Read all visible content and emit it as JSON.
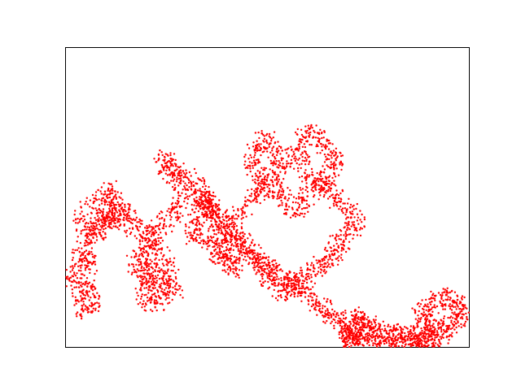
{
  "chart_data": {
    "type": "scatter",
    "title": "",
    "xlabel": "",
    "ylabel": "",
    "axes_visible_ticks": false,
    "grid": false,
    "legend": "none",
    "xlim": [
      0,
      1
    ],
    "ylim": [
      0,
      1
    ],
    "marker_color": "#ff0000",
    "series": [
      {
        "description_points_only": true,
        "x": [
          0.0,
          0.02,
          0.04,
          0.05,
          0.07,
          0.06,
          0.05,
          0.03,
          0.04,
          0.06,
          0.05,
          0.08,
          0.1,
          0.09,
          0.07,
          0.05,
          0.04,
          0.06,
          0.09,
          0.11,
          0.12,
          0.14,
          0.13,
          0.11,
          0.1,
          0.12,
          0.15,
          0.17,
          0.19,
          0.21,
          0.2,
          0.18,
          0.17,
          0.19,
          0.22,
          0.24,
          0.23,
          0.21,
          0.19,
          0.2,
          0.22,
          0.25,
          0.27,
          0.26,
          0.24,
          0.22,
          0.21,
          0.23,
          0.26,
          0.28,
          0.3,
          0.29,
          0.27,
          0.25,
          0.24,
          0.26,
          0.29,
          0.32,
          0.34,
          0.36,
          0.35,
          0.33,
          0.31,
          0.32,
          0.35,
          0.38,
          0.4,
          0.42,
          0.41,
          0.39,
          0.37,
          0.38,
          0.41,
          0.44,
          0.46,
          0.48,
          0.5,
          0.52,
          0.54,
          0.53,
          0.51,
          0.49,
          0.47,
          0.46,
          0.48,
          0.51,
          0.53,
          0.55,
          0.57,
          0.59,
          0.61,
          0.63,
          0.65,
          0.67,
          0.66,
          0.64,
          0.62,
          0.6,
          0.58,
          0.57,
          0.59,
          0.62,
          0.64,
          0.66,
          0.68,
          0.7,
          0.72,
          0.71,
          0.69,
          0.67,
          0.66,
          0.64,
          0.62,
          0.6,
          0.58,
          0.56,
          0.54,
          0.52,
          0.5,
          0.48,
          0.46,
          0.44,
          0.42,
          0.4,
          0.38,
          0.36,
          0.34,
          0.33,
          0.35,
          0.37,
          0.39,
          0.41,
          0.43,
          0.45,
          0.47,
          0.49,
          0.51,
          0.53,
          0.55,
          0.57,
          0.59,
          0.61,
          0.63,
          0.65,
          0.67,
          0.69,
          0.71,
          0.7,
          0.72,
          0.74,
          0.73,
          0.71,
          0.72,
          0.74,
          0.76,
          0.78,
          0.8,
          0.82,
          0.84,
          0.86,
          0.88,
          0.9,
          0.92,
          0.91,
          0.89,
          0.88,
          0.9,
          0.92,
          0.94,
          0.96,
          0.98,
          1.0,
          0.98,
          0.96,
          0.95,
          0.93,
          0.91,
          0.89,
          0.87,
          0.85,
          0.83,
          0.81,
          0.79,
          0.77,
          0.75,
          0.73,
          0.71,
          0.7
        ],
        "y": [
          0.24,
          0.22,
          0.14,
          0.12,
          0.15,
          0.18,
          0.22,
          0.27,
          0.3,
          0.28,
          0.35,
          0.38,
          0.41,
          0.44,
          0.4,
          0.37,
          0.42,
          0.47,
          0.5,
          0.53,
          0.49,
          0.46,
          0.43,
          0.41,
          0.45,
          0.48,
          0.44,
          0.4,
          0.38,
          0.35,
          0.32,
          0.3,
          0.27,
          0.24,
          0.22,
          0.19,
          0.16,
          0.14,
          0.18,
          0.23,
          0.26,
          0.21,
          0.18,
          0.25,
          0.29,
          0.33,
          0.37,
          0.4,
          0.43,
          0.46,
          0.5,
          0.54,
          0.57,
          0.6,
          0.63,
          0.61,
          0.58,
          0.55,
          0.52,
          0.49,
          0.46,
          0.43,
          0.4,
          0.37,
          0.34,
          0.31,
          0.28,
          0.26,
          0.29,
          0.32,
          0.35,
          0.38,
          0.42,
          0.46,
          0.49,
          0.52,
          0.55,
          0.58,
          0.61,
          0.64,
          0.67,
          0.7,
          0.66,
          0.62,
          0.58,
          0.54,
          0.51,
          0.48,
          0.45,
          0.48,
          0.52,
          0.55,
          0.58,
          0.61,
          0.64,
          0.67,
          0.7,
          0.72,
          0.68,
          0.64,
          0.6,
          0.57,
          0.54,
          0.51,
          0.48,
          0.45,
          0.42,
          0.39,
          0.36,
          0.33,
          0.3,
          0.28,
          0.26,
          0.24,
          0.22,
          0.2,
          0.18,
          0.21,
          0.24,
          0.27,
          0.3,
          0.33,
          0.36,
          0.39,
          0.42,
          0.45,
          0.48,
          0.51,
          0.48,
          0.45,
          0.42,
          0.39,
          0.36,
          0.33,
          0.3,
          0.28,
          0.26,
          0.24,
          0.22,
          0.2,
          0.18,
          0.16,
          0.14,
          0.12,
          0.1,
          0.08,
          0.06,
          0.04,
          0.03,
          0.05,
          0.07,
          0.09,
          0.11,
          0.09,
          0.07,
          0.05,
          0.04,
          0.03,
          0.02,
          0.01,
          0.02,
          0.03,
          0.05,
          0.07,
          0.09,
          0.11,
          0.13,
          0.15,
          0.17,
          0.16,
          0.14,
          0.12,
          0.1,
          0.08,
          0.06,
          0.04,
          0.03,
          0.02,
          0.03,
          0.04,
          0.05,
          0.04,
          0.03,
          0.02,
          0.01,
          0.02,
          0.03,
          0.02
        ]
      }
    ]
  }
}
